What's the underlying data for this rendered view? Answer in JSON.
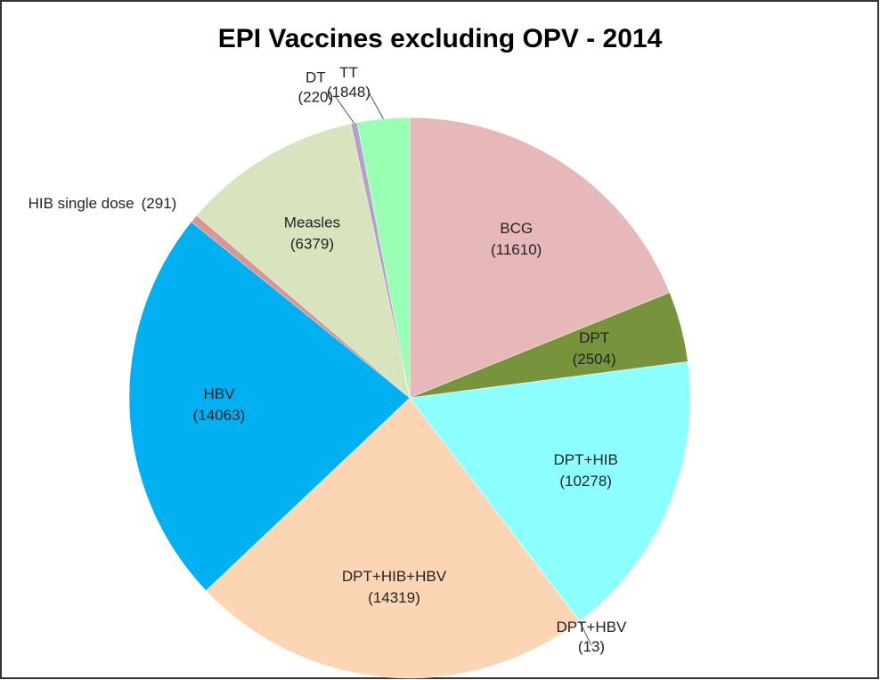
{
  "chart_data": {
    "type": "pie",
    "title": "EPI Vaccines excluding OPV - 2014",
    "categories": [
      "BCG",
      "DPT",
      "DPT+HIB",
      "DPT+HBV",
      "DPT+HIB+HBV",
      "HBV",
      "HIB single dose",
      "Measles",
      "DT",
      "TT"
    ],
    "values": [
      11610,
      2504,
      10278,
      13,
      14319,
      14063,
      291,
      6379,
      220,
      1848
    ],
    "value_labels": [
      "(11610)",
      "(2504)",
      "(10278)",
      "(13)",
      "(14319)",
      "(14063)",
      "(291)",
      "(6379)",
      "(220)",
      "(1848)"
    ],
    "colors": [
      "#e6b9b8",
      "#77933c",
      "#8cffff",
      "#c0504d",
      "#fcd5b5",
      "#00b0f0",
      "#d99694",
      "#d7e4bd",
      "#b3a2c7",
      "#99ffb3"
    ]
  }
}
